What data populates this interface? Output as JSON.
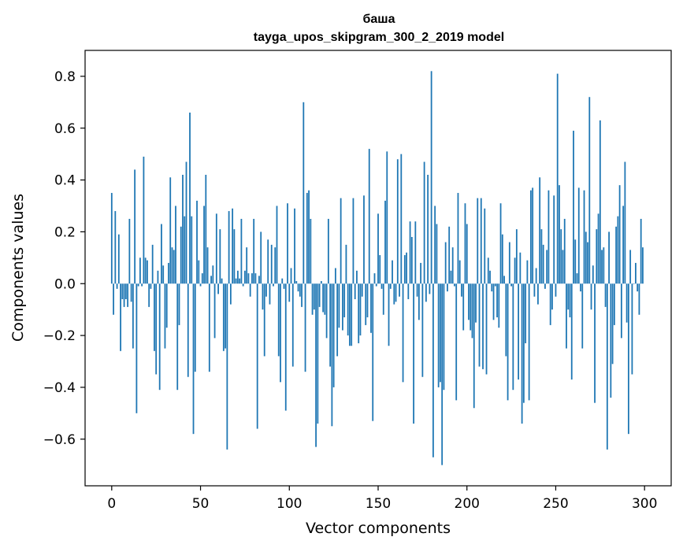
{
  "chart_data": {
    "type": "bar",
    "title": "баша",
    "subtitle": "tayga_upos_skipgram_300_2_2019 model",
    "xlabel": "Vector components",
    "ylabel": "Components values",
    "xlim": [
      -15,
      315
    ],
    "ylim": [
      -0.78,
      0.9
    ],
    "grid": false,
    "bar_color": "#1f77b4",
    "x_ticks": [
      0,
      50,
      100,
      150,
      200,
      250,
      300
    ],
    "y_ticks": [
      -0.6,
      -0.4,
      -0.2,
      0.0,
      0.2,
      0.4,
      0.6,
      0.8
    ],
    "x_tick_labels": [
      "0",
      "50",
      "100",
      "150",
      "200",
      "250",
      "300"
    ],
    "y_tick_labels": [
      "−0.6",
      "−0.4",
      "−0.2",
      "0.0",
      "0.2",
      "0.4",
      "0.6",
      "0.8"
    ],
    "values": [
      0.35,
      -0.12,
      0.28,
      -0.02,
      0.19,
      -0.26,
      -0.06,
      -0.09,
      -0.06,
      -0.09,
      0.25,
      -0.07,
      -0.25,
      0.44,
      -0.5,
      -0.01,
      0.1,
      -0.01,
      0.49,
      0.1,
      0.09,
      -0.09,
      -0.02,
      0.15,
      -0.26,
      -0.35,
      0.05,
      -0.41,
      0.23,
      0.07,
      -0.25,
      -0.17,
      0.08,
      0.41,
      0.14,
      0.13,
      0.3,
      -0.41,
      -0.16,
      0.22,
      0.42,
      0.26,
      0.47,
      -0.36,
      0.66,
      0.26,
      -0.58,
      -0.34,
      0.32,
      0.09,
      -0.01,
      0.04,
      0.3,
      0.42,
      0.14,
      -0.34,
      0.03,
      0.07,
      -0.21,
      0.27,
      -0.04,
      0.21,
      0.02,
      -0.26,
      -0.25,
      -0.64,
      0.28,
      -0.08,
      0.29,
      0.21,
      0.02,
      0.05,
      0.02,
      0.25,
      -0.01,
      0.05,
      0.14,
      0.04,
      -0.05,
      0.04,
      0.25,
      0.04,
      -0.56,
      0.03,
      0.2,
      -0.1,
      -0.28,
      -0.05,
      0.17,
      -0.08,
      0.15,
      -0.01,
      0.14,
      0.3,
      -0.28,
      -0.38,
      0.02,
      -0.02,
      -0.49,
      0.31,
      -0.07,
      0.06,
      -0.32,
      0.29,
      0.01,
      -0.03,
      -0.05,
      -0.09,
      0.7,
      -0.34,
      0.35,
      0.36,
      0.25,
      -0.12,
      -0.1,
      -0.63,
      -0.54,
      -0.09,
      0.01,
      -0.11,
      -0.12,
      -0.21,
      0.25,
      -0.32,
      -0.55,
      -0.4,
      0.06,
      -0.28,
      -0.17,
      0.33,
      -0.18,
      -0.13,
      0.15,
      -0.2,
      -0.24,
      -0.24,
      0.33,
      -0.06,
      0.05,
      -0.23,
      -0.2,
      -0.05,
      0.34,
      -0.16,
      -0.13,
      0.52,
      -0.19,
      -0.53,
      0.04,
      -0.01,
      0.27,
      0.11,
      -0.02,
      -0.12,
      0.32,
      0.51,
      -0.24,
      -0.02,
      0.09,
      -0.08,
      -0.07,
      0.48,
      -0.05,
      0.5,
      -0.38,
      0.11,
      0.12,
      -0.06,
      0.24,
      0.18,
      -0.54,
      0.24,
      -0.05,
      -0.14,
      0.08,
      -0.36,
      0.47,
      -0.07,
      0.42,
      -0.04,
      0.82,
      -0.67,
      0.3,
      0.23,
      -0.4,
      -0.38,
      -0.7,
      -0.41,
      0.16,
      -0.03,
      0.22,
      0.05,
      0.14,
      -0.01,
      -0.45,
      0.35,
      0.09,
      -0.05,
      -0.18,
      0.31,
      0.23,
      -0.14,
      -0.18,
      -0.21,
      -0.48,
      -0.15,
      0.33,
      -0.32,
      0.33,
      -0.33,
      0.29,
      -0.35,
      0.1,
      0.05,
      -0.03,
      -0.14,
      -0.01,
      -0.13,
      -0.17,
      0.31,
      0.19,
      0.03,
      -0.28,
      -0.45,
      0.16,
      -0.01,
      -0.41,
      0.1,
      0.21,
      -0.37,
      0.12,
      -0.54,
      -0.46,
      -0.23,
      0.09,
      -0.45,
      0.36,
      0.37,
      -0.05,
      0.06,
      -0.08,
      0.41,
      0.21,
      0.15,
      -0.02,
      0.13,
      0.36,
      -0.16,
      -0.1,
      0.34,
      -0.05,
      0.81,
      0.38,
      0.21,
      0.13,
      0.25,
      -0.25,
      -0.1,
      -0.13,
      -0.37,
      0.59,
      0.17,
      0.04,
      0.37,
      -0.03,
      -0.25,
      0.36,
      0.2,
      0.16,
      0.72,
      -0.1,
      0.07,
      -0.46,
      0.21,
      0.27,
      0.63,
      0.13,
      0.14,
      -0.09,
      -0.64,
      0.2,
      -0.44,
      -0.31,
      -0.16,
      0.22,
      0.26,
      0.38,
      -0.21,
      0.3,
      0.47,
      -0.15,
      -0.58,
      0.13,
      -0.35,
      0.0,
      0.08,
      -0.03,
      -0.12,
      0.25,
      0.14
    ]
  }
}
